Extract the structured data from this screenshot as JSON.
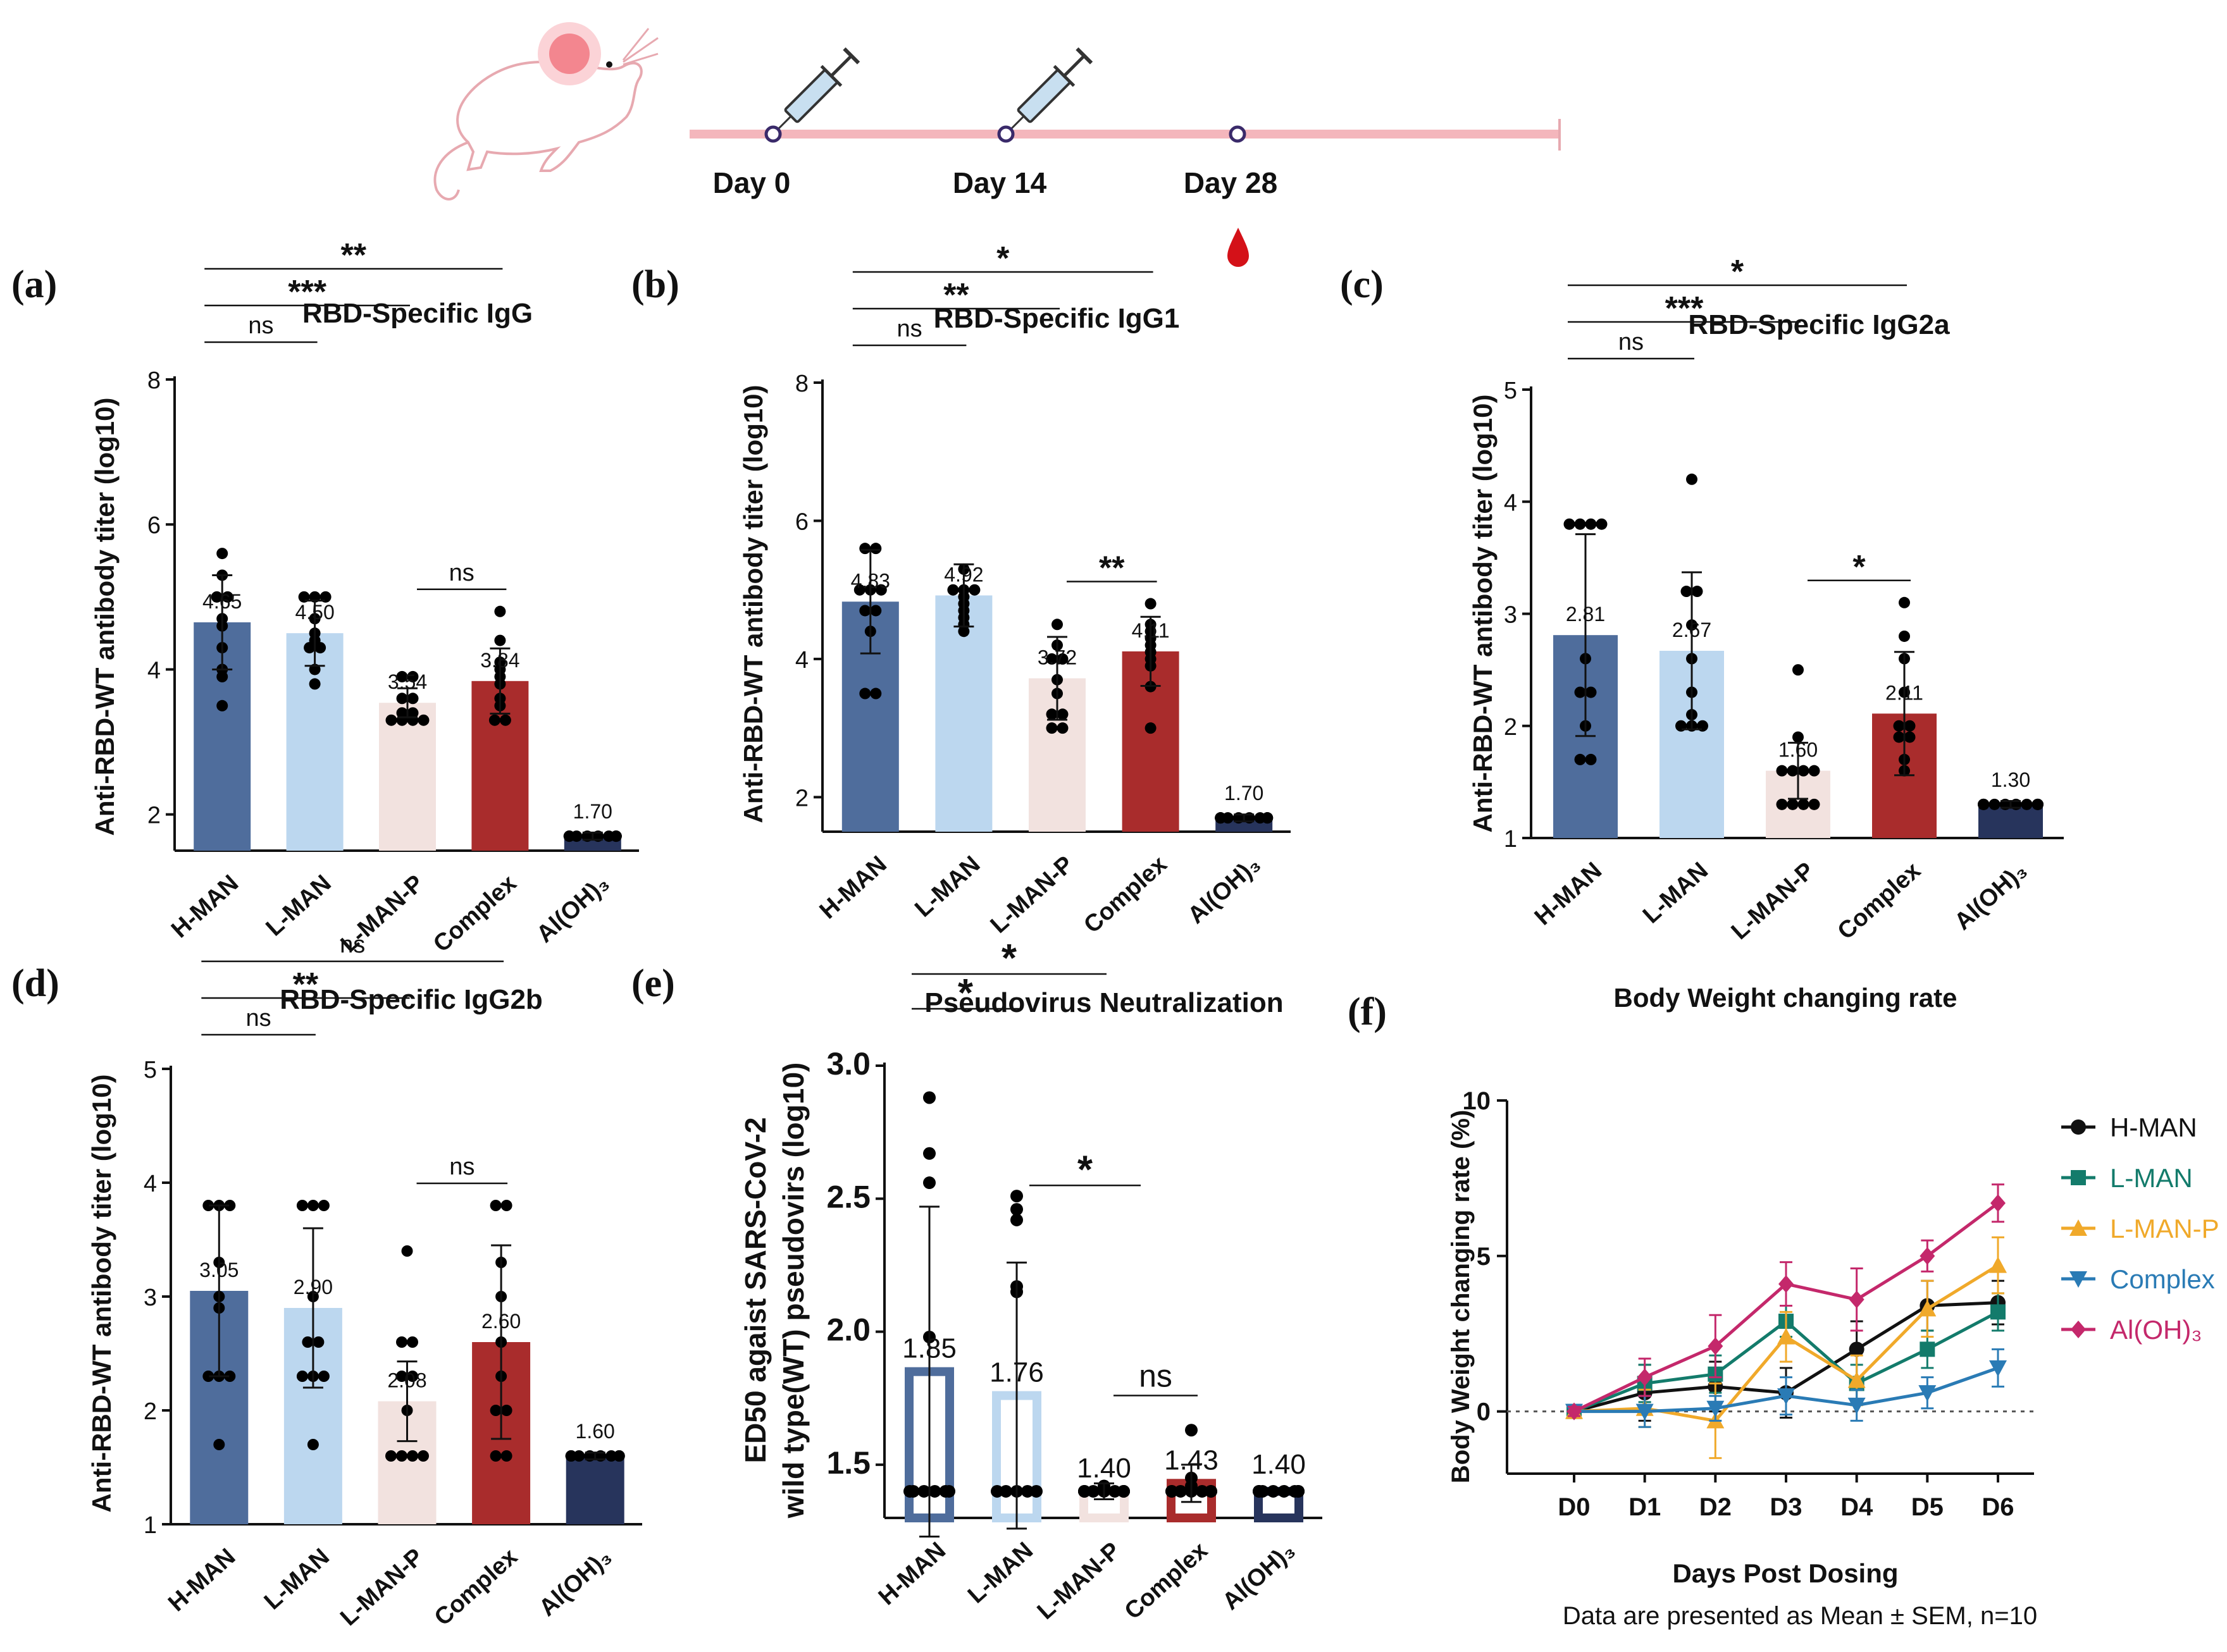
{
  "timeline": {
    "days": [
      "Day 0",
      "Day 14",
      "Day 28"
    ],
    "line_color": "#f4b6bc",
    "icons": [
      "mouse-icon",
      "syringe-icon",
      "syringe-icon",
      "blood-drop-icon"
    ]
  },
  "colors": {
    "H-MAN": "#4f6d9c",
    "L-MAN": "#bcd7ef",
    "L-MAN-P": "#f2e2df",
    "Complex": "#a92c2c",
    "Al(OH)3": "#27345c",
    "line_H-MAN": "#111111",
    "line_L-MAN": "#137b6b",
    "line_L-MAN-P": "#f0a92a",
    "line_Complex": "#2a7bb5",
    "line_Al(OH)3": "#c4286b"
  },
  "chart_data": [
    {
      "panel": "(a)",
      "type": "bar",
      "title": "RBD-Specific IgG",
      "ylabel": "Anti-RBD-WT antibody titer (log10)",
      "ylim": [
        1.5,
        8
      ],
      "yticks": [
        2,
        4,
        6,
        8
      ],
      "categories": [
        "H-MAN",
        "L-MAN",
        "L-MAN-P",
        "Complex",
        "Al(OH)₃"
      ],
      "values": [
        4.65,
        4.5,
        3.54,
        3.84,
        1.7
      ],
      "labels": [
        "4.65",
        "4.50",
        "3.54",
        "3.84",
        "1.70"
      ],
      "errors": [
        0.65,
        0.45,
        0.2,
        0.45,
        0.05
      ],
      "points": [
        [
          5.6,
          5.3,
          5.0,
          5.0,
          4.7,
          4.6,
          4.3,
          4.0,
          3.9,
          3.5
        ],
        [
          5.0,
          5.0,
          5.0,
          4.7,
          4.5,
          4.4,
          4.3,
          4.3,
          4.0,
          3.8
        ],
        [
          3.9,
          3.9,
          3.6,
          3.6,
          3.4,
          3.4,
          3.3,
          3.3,
          3.3,
          3.3
        ],
        [
          4.8,
          4.4,
          4.1,
          4.0,
          3.9,
          3.8,
          3.6,
          3.5,
          3.3,
          3.3
        ],
        [
          1.7,
          1.7,
          1.7,
          1.7,
          1.7,
          1.7,
          1.7,
          1.7,
          1.7,
          1.7
        ]
      ],
      "annotations": [
        {
          "from": 0,
          "to": 1,
          "text": "ns",
          "level": 0
        },
        {
          "from": 0,
          "to": 2,
          "text": "***",
          "level": 1
        },
        {
          "from": 0,
          "to": 3,
          "text": "**",
          "level": 2
        },
        {
          "from": 2,
          "to": 3,
          "text": "ns",
          "level": 0
        }
      ]
    },
    {
      "panel": "(b)",
      "type": "bar",
      "title": "RBD-Specific IgG1",
      "ylabel": "Anti-RBD-WT antibody titer (log10)",
      "ylim": [
        1.5,
        8
      ],
      "yticks": [
        2,
        4,
        6,
        8
      ],
      "categories": [
        "H-MAN",
        "L-MAN",
        "L-MAN-P",
        "Complex",
        "Al(OH)₃"
      ],
      "values": [
        4.83,
        4.92,
        3.72,
        4.11,
        1.7
      ],
      "labels": [
        "4.83",
        "4.92",
        "3.72",
        "4.11",
        "1.70"
      ],
      "errors": [
        0.75,
        0.45,
        0.6,
        0.5,
        0.05
      ],
      "points": [
        [
          5.6,
          5.6,
          5.0,
          5.0,
          5.0,
          4.7,
          4.7,
          4.4,
          3.5,
          3.5
        ],
        [
          5.3,
          5.0,
          5.0,
          5.0,
          4.9,
          4.8,
          4.7,
          4.6,
          4.5,
          4.4
        ],
        [
          4.5,
          4.2,
          4.0,
          4.0,
          3.7,
          3.5,
          3.2,
          3.2,
          3.0,
          3.0
        ],
        [
          4.8,
          4.5,
          4.4,
          4.3,
          4.2,
          4.1,
          4.0,
          3.9,
          3.6,
          3.0
        ],
        [
          1.7,
          1.7,
          1.7,
          1.7,
          1.7,
          1.7,
          1.7,
          1.7,
          1.7,
          1.7
        ]
      ],
      "annotations": [
        {
          "from": 0,
          "to": 1,
          "text": "ns",
          "level": 0
        },
        {
          "from": 0,
          "to": 2,
          "text": "**",
          "level": 1
        },
        {
          "from": 0,
          "to": 3,
          "text": "*",
          "level": 2
        },
        {
          "from": 2,
          "to": 3,
          "text": "**",
          "level": 0
        }
      ]
    },
    {
      "panel": "(c)",
      "type": "bar",
      "title": "RBD-Specific IgG2a",
      "ylabel": "Anti-RBD-WT antibody titer (log10)",
      "ylim": [
        1,
        5
      ],
      "yticks": [
        1,
        2,
        3,
        4,
        5
      ],
      "categories": [
        "H-MAN",
        "L-MAN",
        "L-MAN-P",
        "Complex",
        "Al(OH)₃"
      ],
      "values": [
        2.81,
        2.67,
        1.6,
        2.11,
        1.3
      ],
      "labels": [
        "2.81",
        "2.67",
        "1.60",
        "2.11",
        "1.30"
      ],
      "errors": [
        0.9,
        0.7,
        0.25,
        0.55,
        0.03
      ],
      "points": [
        [
          3.8,
          3.8,
          3.8,
          3.8,
          2.6,
          2.3,
          2.3,
          2.0,
          1.7,
          1.7
        ],
        [
          4.2,
          3.2,
          3.2,
          2.9,
          2.6,
          2.3,
          2.1,
          2.0,
          2.0,
          2.0
        ],
        [
          2.5,
          1.9,
          1.6,
          1.6,
          1.6,
          1.6,
          1.3,
          1.3,
          1.3,
          1.3
        ],
        [
          3.1,
          2.8,
          2.6,
          2.3,
          2.0,
          2.0,
          1.9,
          1.9,
          1.7,
          1.6
        ],
        [
          1.3,
          1.3,
          1.3,
          1.3,
          1.3,
          1.3,
          1.3,
          1.3,
          1.3,
          1.3
        ]
      ],
      "annotations": [
        {
          "from": 0,
          "to": 1,
          "text": "ns",
          "level": 0
        },
        {
          "from": 0,
          "to": 2,
          "text": "***",
          "level": 1
        },
        {
          "from": 0,
          "to": 3,
          "text": "*",
          "level": 2
        },
        {
          "from": 2,
          "to": 3,
          "text": "*",
          "level": 0
        }
      ]
    },
    {
      "panel": "(d)",
      "type": "bar",
      "title": "RBD-Specific IgG2b",
      "ylabel": "Anti-RBD-WT antibody titer (log10)",
      "ylim": [
        1,
        5
      ],
      "yticks": [
        1,
        2,
        3,
        4,
        5
      ],
      "categories": [
        "H-MAN",
        "L-MAN",
        "L-MAN-P",
        "Complex",
        "Al(OH)₃"
      ],
      "values": [
        3.05,
        2.9,
        2.08,
        2.6,
        1.6
      ],
      "labels": [
        "3.05",
        "2.90",
        "2.08",
        "2.60",
        "1.60"
      ],
      "errors": [
        0.75,
        0.7,
        0.35,
        0.85,
        0.03
      ],
      "points": [
        [
          3.8,
          3.8,
          3.8,
          3.3,
          3.0,
          2.9,
          2.3,
          2.3,
          2.3,
          1.7
        ],
        [
          3.8,
          3.8,
          3.8,
          3.0,
          2.6,
          2.6,
          2.3,
          2.3,
          2.3,
          1.7
        ],
        [
          3.4,
          2.6,
          2.6,
          2.3,
          2.3,
          2.0,
          1.6,
          1.6,
          1.6,
          1.6
        ],
        [
          3.8,
          3.8,
          3.3,
          3.0,
          2.6,
          2.3,
          2.0,
          2.0,
          1.6,
          1.6
        ],
        [
          1.6,
          1.6,
          1.6,
          1.6,
          1.6,
          1.6,
          1.6,
          1.6,
          1.6,
          1.6
        ]
      ],
      "annotations": [
        {
          "from": 0,
          "to": 1,
          "text": "ns",
          "level": 0
        },
        {
          "from": 0,
          "to": 2,
          "text": "**",
          "level": 1
        },
        {
          "from": 0,
          "to": 3,
          "text": "ns",
          "level": 2
        },
        {
          "from": 2,
          "to": 3,
          "text": "ns",
          "level": 0
        }
      ]
    },
    {
      "panel": "(e)",
      "type": "bar",
      "title": "Pseudovirus Neutralization",
      "ylabel": [
        "ED50 agaist SARS-CoV-2",
        "wild type(WT) pseudovirs  (log10)"
      ],
      "ylim": [
        1.3,
        3.0
      ],
      "yticks": [
        1.5,
        2.0,
        2.5,
        3.0
      ],
      "yticklabels": [
        "1.5",
        "2.0",
        "2.5",
        "3.0"
      ],
      "style": "outline",
      "categories": [
        "H-MAN",
        "L-MAN",
        "L-MAN-P",
        "Complex",
        "Al(OH)₃"
      ],
      "values": [
        1.85,
        1.76,
        1.4,
        1.43,
        1.4
      ],
      "labels": [
        "1.85",
        "1.76",
        "1.40",
        "1.43",
        "1.40"
      ],
      "errors": [
        0.62,
        0.5,
        0.03,
        0.07,
        0.0
      ],
      "points": [
        [
          2.88,
          2.67,
          2.56,
          1.98,
          1.4,
          1.4,
          1.4,
          1.4,
          1.4,
          1.4
        ],
        [
          2.51,
          2.46,
          2.42,
          2.17,
          2.15,
          1.4,
          1.4,
          1.4,
          1.4,
          1.4
        ],
        [
          1.42,
          1.4,
          1.4,
          1.4,
          1.4,
          1.4,
          1.4,
          1.4,
          1.4,
          1.4
        ],
        [
          1.63,
          1.45,
          1.42,
          1.4,
          1.4,
          1.4,
          1.4,
          1.4,
          1.4,
          1.4
        ],
        [
          1.4,
          1.4,
          1.4,
          1.4,
          1.4,
          1.4,
          1.4,
          1.4,
          1.4,
          1.4
        ]
      ],
      "annotations": [
        {
          "from": 0,
          "to": 1,
          "text": "*",
          "level": 1
        },
        {
          "from": 0,
          "to": 2,
          "text": "*",
          "level": 2
        },
        {
          "from": 1,
          "to": 2,
          "text": "*",
          "level": 0
        },
        {
          "from": 2,
          "to": 3,
          "text": "ns",
          "level": -1
        }
      ]
    },
    {
      "panel": "(f)",
      "type": "line",
      "title": "Body Weight changing rate",
      "xlabel": "Days Post  Dosing",
      "ylabel": "Body Weight changing rate (%)",
      "note": "Data are presented as Mean ± SEM,   n=10",
      "x": [
        "D0",
        "D1",
        "D2",
        "D3",
        "D4",
        "D5",
        "D6"
      ],
      "ylim": [
        -2,
        10
      ],
      "yticks": [
        0,
        5,
        10
      ],
      "series": [
        {
          "name": "H-MAN",
          "legend": "H-MAN",
          "marker": "circle",
          "values": [
            0,
            0.6,
            0.8,
            0.6,
            2.0,
            3.4,
            3.5
          ],
          "errors": [
            0.15,
            0.9,
            0.8,
            0.8,
            0.9,
            0.8,
            0.7
          ]
        },
        {
          "name": "L-MAN",
          "legend": "L-MAN",
          "marker": "square",
          "values": [
            0,
            0.9,
            1.2,
            2.9,
            0.9,
            2.0,
            3.2
          ],
          "errors": [
            0.15,
            0.6,
            0.6,
            0.5,
            0.6,
            0.6,
            0.6
          ]
        },
        {
          "name": "L-MAN-P",
          "legend": "L-MAN-P",
          "marker": "triangle-up",
          "values": [
            0,
            0.1,
            -0.3,
            2.4,
            1.0,
            3.3,
            4.7
          ],
          "errors": [
            0.15,
            0.6,
            1.2,
            0.8,
            0.8,
            0.9,
            0.9
          ]
        },
        {
          "name": "Complex",
          "legend": "Complex",
          "marker": "triangle-down",
          "values": [
            0,
            0.0,
            0.1,
            0.5,
            0.2,
            0.6,
            1.4
          ],
          "errors": [
            0.15,
            0.5,
            0.4,
            0.6,
            0.5,
            0.5,
            0.6
          ]
        },
        {
          "name": "Al(OH)3",
          "legend": "Al(OH)₃",
          "marker": "diamond",
          "values": [
            0,
            1.1,
            2.1,
            4.1,
            3.6,
            5.0,
            6.7
          ],
          "errors": [
            0.15,
            0.6,
            1.0,
            0.7,
            1.0,
            0.5,
            0.6
          ]
        }
      ]
    }
  ]
}
